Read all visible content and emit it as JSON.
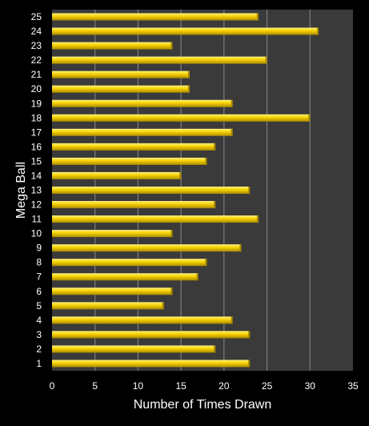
{
  "chart_data": {
    "type": "bar",
    "orientation": "horizontal",
    "categories": [
      "1",
      "2",
      "3",
      "4",
      "5",
      "6",
      "7",
      "8",
      "9",
      "10",
      "11",
      "12",
      "13",
      "14",
      "15",
      "16",
      "17",
      "18",
      "19",
      "20",
      "21",
      "22",
      "23",
      "24",
      "25"
    ],
    "values": [
      23,
      19,
      23,
      21,
      13,
      14,
      17,
      18,
      22,
      14,
      24,
      19,
      23,
      15,
      18,
      19,
      21,
      30,
      21,
      16,
      16,
      25,
      14,
      31,
      24
    ],
    "xlabel": "Number of Times Drawn",
    "ylabel": "Mega Ball",
    "xlim": [
      0,
      35
    ],
    "xticks": [
      "0",
      "5",
      "10",
      "15",
      "20",
      "25",
      "30",
      "35"
    ],
    "grid": "vertical",
    "legend": "none"
  },
  "colors": {
    "page_background": "#000000",
    "plot_background": "#3a3a3a",
    "gridline": "#8a8a8a",
    "bar_fill": "#f5d000",
    "bar_highlight": "#fff27a",
    "bar_shadow": "#a88a00",
    "text": "#ffffff"
  }
}
